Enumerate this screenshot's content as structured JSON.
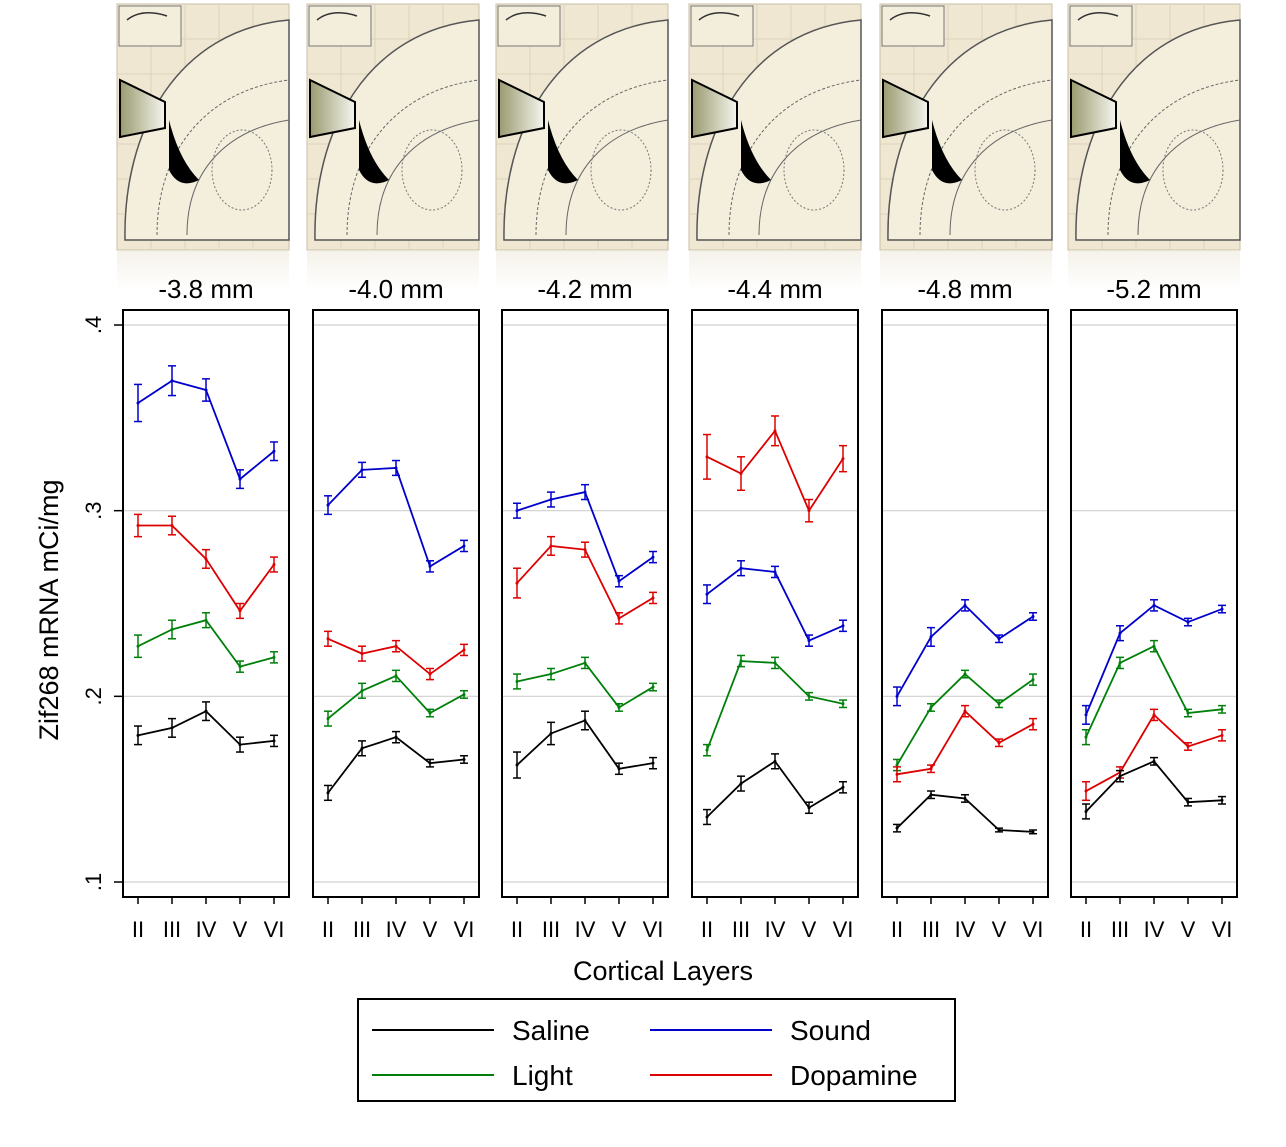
{
  "chart_data": {
    "type": "line",
    "ylabel": "Zif268 mRNA mCi/mg",
    "xlabel": "Cortical Layers",
    "ylim": [
      0.1,
      0.4
    ],
    "y_ticks": [
      ".1",
      ".2",
      ".3",
      ".4"
    ],
    "y_tick_values": [
      0.1,
      0.2,
      0.3,
      0.4
    ],
    "categories": [
      "II",
      "III",
      "IV",
      "V",
      "VI"
    ],
    "grid": true,
    "error_bars": true,
    "colors": {
      "Saline": "#000000",
      "Sound": "#0000cc",
      "Light": "#00800a",
      "Dopamine": "#dd0000"
    },
    "legend": {
      "placement": "bottom-center",
      "entries": [
        "Saline",
        "Sound",
        "Light",
        "Dopamine"
      ]
    },
    "panels": [
      {
        "title": "-3.8 mm",
        "series": [
          {
            "name": "Sound",
            "values": [
              0.358,
              0.37,
              0.365,
              0.317,
              0.332
            ],
            "err": [
              0.01,
              0.008,
              0.006,
              0.005,
              0.005
            ]
          },
          {
            "name": "Dopamine",
            "values": [
              0.292,
              0.292,
              0.274,
              0.246,
              0.271
            ],
            "err": [
              0.006,
              0.005,
              0.005,
              0.004,
              0.004
            ]
          },
          {
            "name": "Light",
            "values": [
              0.227,
              0.236,
              0.241,
              0.216,
              0.221
            ],
            "err": [
              0.006,
              0.005,
              0.004,
              0.003,
              0.003
            ]
          },
          {
            "name": "Saline",
            "values": [
              0.179,
              0.183,
              0.192,
              0.174,
              0.176
            ],
            "err": [
              0.005,
              0.005,
              0.005,
              0.004,
              0.003
            ]
          }
        ]
      },
      {
        "title": "-4.0 mm",
        "series": [
          {
            "name": "Sound",
            "values": [
              0.303,
              0.322,
              0.323,
              0.27,
              0.281
            ],
            "err": [
              0.005,
              0.004,
              0.004,
              0.003,
              0.003
            ]
          },
          {
            "name": "Dopamine",
            "values": [
              0.231,
              0.223,
              0.227,
              0.212,
              0.225
            ],
            "err": [
              0.004,
              0.004,
              0.003,
              0.003,
              0.003
            ]
          },
          {
            "name": "Light",
            "values": [
              0.188,
              0.203,
              0.211,
              0.191,
              0.201
            ],
            "err": [
              0.004,
              0.004,
              0.003,
              0.002,
              0.002
            ]
          },
          {
            "name": "Saline",
            "values": [
              0.148,
              0.172,
              0.178,
              0.164,
              0.166
            ],
            "err": [
              0.004,
              0.004,
              0.003,
              0.002,
              0.002
            ]
          }
        ]
      },
      {
        "title": "-4.2 mm",
        "series": [
          {
            "name": "Sound",
            "values": [
              0.3,
              0.306,
              0.31,
              0.262,
              0.275
            ],
            "err": [
              0.004,
              0.004,
              0.004,
              0.003,
              0.003
            ]
          },
          {
            "name": "Dopamine",
            "values": [
              0.261,
              0.281,
              0.279,
              0.242,
              0.253
            ],
            "err": [
              0.008,
              0.005,
              0.004,
              0.003,
              0.003
            ]
          },
          {
            "name": "Light",
            "values": [
              0.208,
              0.212,
              0.218,
              0.194,
              0.205
            ],
            "err": [
              0.004,
              0.003,
              0.003,
              0.002,
              0.002
            ]
          },
          {
            "name": "Saline",
            "values": [
              0.163,
              0.18,
              0.187,
              0.161,
              0.164
            ],
            "err": [
              0.007,
              0.006,
              0.005,
              0.003,
              0.003
            ]
          }
        ]
      },
      {
        "title": "-4.4 mm",
        "series": [
          {
            "name": "Dopamine",
            "values": [
              0.329,
              0.32,
              0.343,
              0.3,
              0.328
            ],
            "err": [
              0.012,
              0.009,
              0.008,
              0.006,
              0.007
            ]
          },
          {
            "name": "Sound",
            "values": [
              0.255,
              0.269,
              0.267,
              0.23,
              0.238
            ],
            "err": [
              0.005,
              0.004,
              0.003,
              0.003,
              0.003
            ]
          },
          {
            "name": "Light",
            "values": [
              0.171,
              0.219,
              0.218,
              0.2,
              0.196
            ],
            "err": [
              0.003,
              0.003,
              0.003,
              0.002,
              0.002
            ]
          },
          {
            "name": "Saline",
            "values": [
              0.135,
              0.153,
              0.165,
              0.14,
              0.151
            ],
            "err": [
              0.004,
              0.004,
              0.004,
              0.003,
              0.003
            ]
          }
        ]
      },
      {
        "title": "-4.8 mm",
        "series": [
          {
            "name": "Sound",
            "values": [
              0.2,
              0.232,
              0.249,
              0.231,
              0.243
            ],
            "err": [
              0.005,
              0.005,
              0.003,
              0.002,
              0.002
            ]
          },
          {
            "name": "Light",
            "values": [
              0.163,
              0.194,
              0.212,
              0.196,
              0.209
            ],
            "err": [
              0.003,
              0.002,
              0.002,
              0.002,
              0.003
            ]
          },
          {
            "name": "Dopamine",
            "values": [
              0.158,
              0.161,
              0.192,
              0.175,
              0.185
            ],
            "err": [
              0.004,
              0.002,
              0.003,
              0.002,
              0.003
            ]
          },
          {
            "name": "Saline",
            "values": [
              0.129,
              0.147,
              0.145,
              0.128,
              0.127
            ],
            "err": [
              0.002,
              0.002,
              0.002,
              0.001,
              0.001
            ]
          }
        ]
      },
      {
        "title": "-5.2 mm",
        "series": [
          {
            "name": "Sound",
            "values": [
              0.19,
              0.234,
              0.249,
              0.24,
              0.247
            ],
            "err": [
              0.005,
              0.004,
              0.003,
              0.002,
              0.002
            ]
          },
          {
            "name": "Light",
            "values": [
              0.178,
              0.218,
              0.227,
              0.191,
              0.193
            ],
            "err": [
              0.004,
              0.003,
              0.003,
              0.002,
              0.002
            ]
          },
          {
            "name": "Dopamine",
            "values": [
              0.149,
              0.159,
              0.19,
              0.173,
              0.179
            ],
            "err": [
              0.005,
              0.003,
              0.003,
              0.002,
              0.003
            ]
          },
          {
            "name": "Saline",
            "values": [
              0.138,
              0.157,
              0.165,
              0.143,
              0.144
            ],
            "err": [
              0.004,
              0.003,
              0.002,
              0.002,
              0.002
            ]
          }
        ]
      }
    ]
  }
}
